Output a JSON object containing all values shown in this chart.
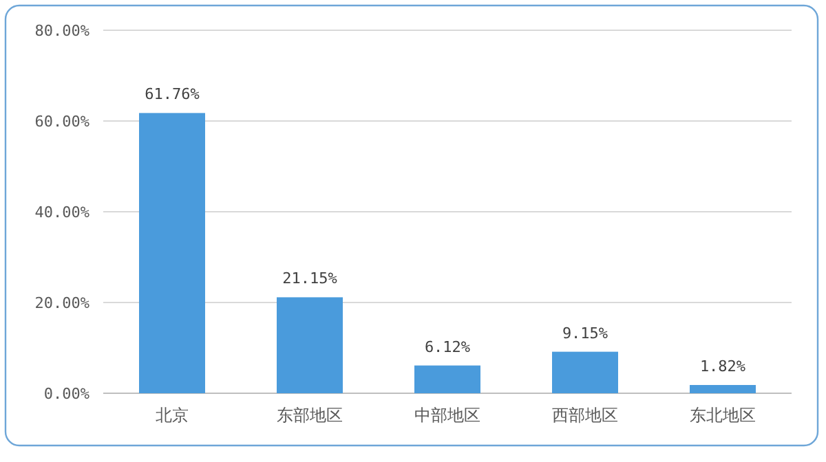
{
  "chart_data": {
    "type": "bar",
    "categories": [
      "北京",
      "东部地区",
      "中部地区",
      "西部地区",
      "东北地区"
    ],
    "values": [
      61.76,
      21.15,
      6.12,
      9.15,
      1.82
    ],
    "value_labels": [
      "61.76%",
      "21.15%",
      "6.12%",
      "9.15%",
      "1.82%"
    ],
    "color": "#4a9bdc",
    "ylim": [
      0,
      80
    ],
    "yticks": [
      {
        "value": 0,
        "label": "0.00%"
      },
      {
        "value": 20,
        "label": "20.00%"
      },
      {
        "value": 40,
        "label": "40.00%"
      },
      {
        "value": 60,
        "label": "60.00%"
      },
      {
        "value": 80,
        "label": "80.00%"
      }
    ],
    "grid": "y"
  }
}
